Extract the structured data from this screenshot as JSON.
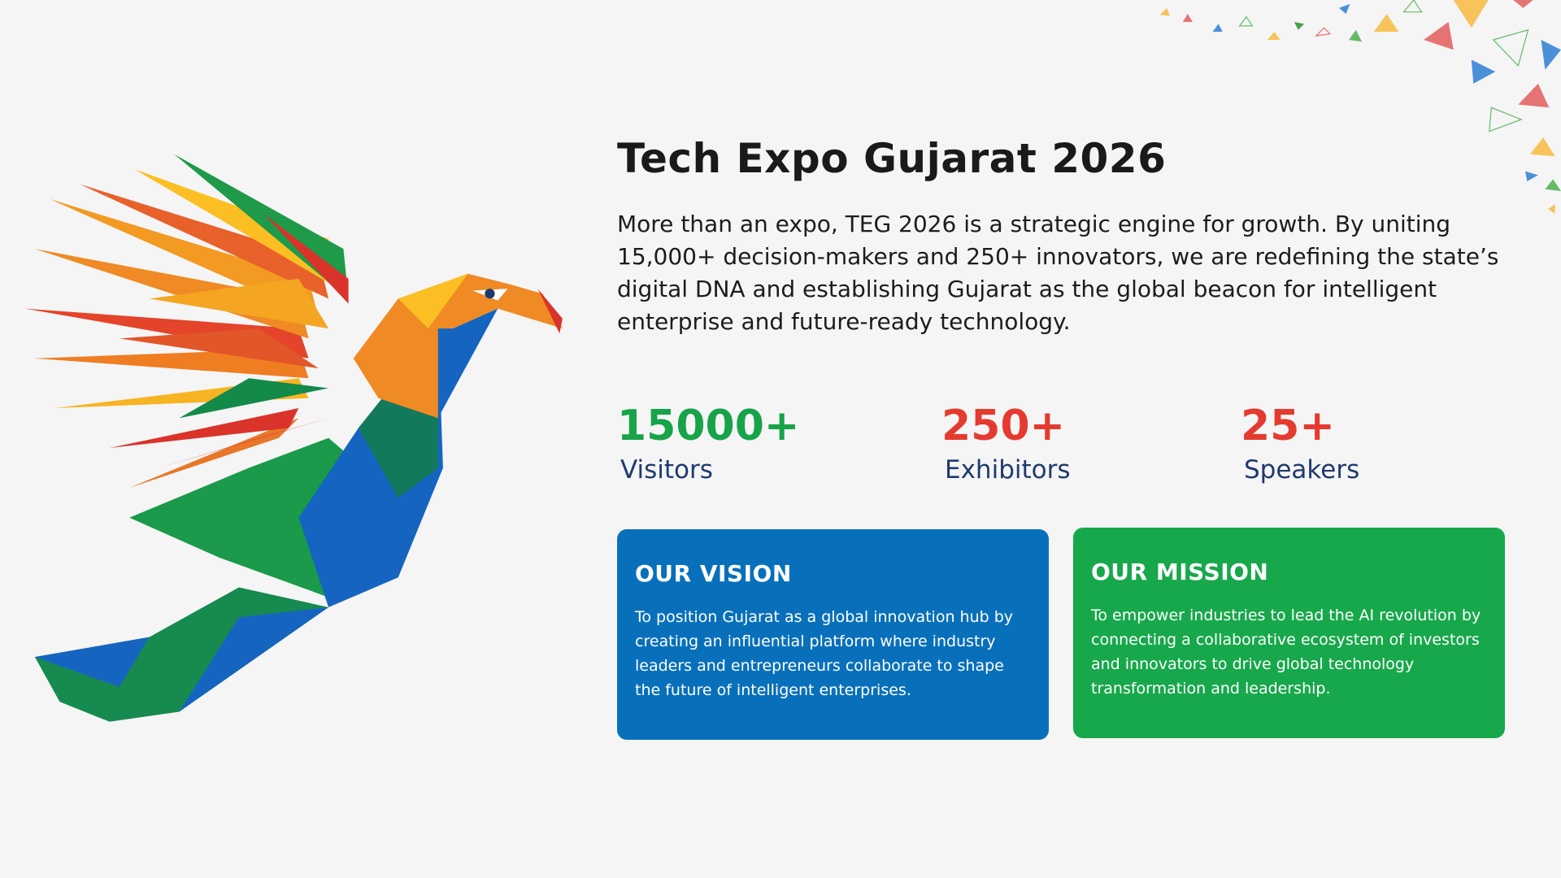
{
  "title": "Tech Expo Gujarat 2026",
  "description": "More than an expo, TEG 2026 is a strategic engine for growth. By uniting 15,000+ decision-makers and 250+ innovators, we are redefining the state’s digital DNA and establishing Gujarat as the global beacon for intelligent enterprise and future-ready technology.",
  "stats": [
    {
      "value": "15000+",
      "label": "Visitors"
    },
    {
      "value": "250+",
      "label": "Exhibitors"
    },
    {
      "value": "25+",
      "label": "Speakers"
    }
  ],
  "cards": [
    {
      "title": "OUR VISION",
      "text": "To position Gujarat as a global innovation hub by creating an influential platform where industry leaders and entrepreneurs collaborate to shape the future of intelligent enterprises."
    },
    {
      "title": "OUR MISSION",
      "text": "To empower industries to lead the AI revolution by connecting a collaborative ecosystem of investors and innovators to drive global technology transformation and leadership."
    }
  ]
}
